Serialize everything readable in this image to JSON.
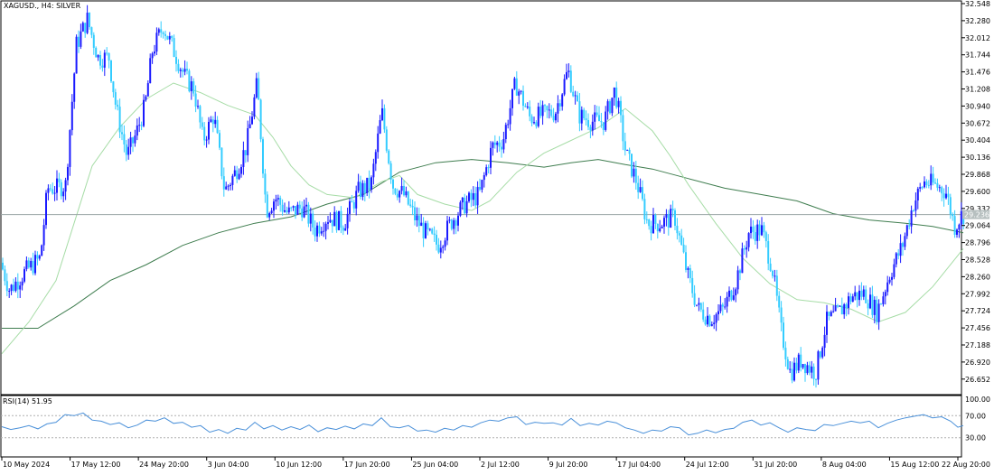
{
  "header": {
    "symbol_label": "XAGUSD., H4:  SILVER"
  },
  "rsi": {
    "label": "RSI(14) 51.95",
    "levels": [
      "100.00",
      "70.00",
      "30.00",
      "0.00"
    ],
    "current": 51.95
  },
  "colors": {
    "bull": "#1a1aff",
    "bear": "#33ccff",
    "ma_fast": "#a6dca6",
    "ma_slow": "#3f7d4f",
    "rsi_line": "#4a90d9",
    "current_line": "#9aa5a5",
    "price_tag_bg": "#b7c0c0"
  },
  "chart_data": {
    "type": "candlestick",
    "symbol": "XAGUSD.",
    "timeframe": "H4",
    "ylim": [
      26.38,
      32.55
    ],
    "price_ticks": [
      "32.548",
      "32.280",
      "32.012",
      "31.744",
      "31.476",
      "31.208",
      "30.940",
      "30.672",
      "30.404",
      "30.136",
      "29.868",
      "29.600",
      "29.332",
      "29.064",
      "28.796",
      "28.528",
      "28.260",
      "27.992",
      "27.724",
      "27.456",
      "27.188",
      "26.920",
      "26.652"
    ],
    "current_price": "29.236",
    "time_labels": [
      "10 May 2024",
      "17 May 12:00",
      "24 May 20:00",
      "3 Jun 04:00",
      "10 Jun 12:00",
      "17 Jun 20:00",
      "25 Jun 04:00",
      "2 Jul 12:00",
      "9 Jul 20:00",
      "17 Jul 04:00",
      "24 Jul 12:00",
      "31 Jul 20:00",
      "8 Aug 04:00",
      "15 Aug 12:00",
      "22 Aug 20:00"
    ],
    "close_path": [
      [
        0,
        28.48
      ],
      [
        10,
        28.05
      ],
      [
        28,
        28.35
      ],
      [
        44,
        28.55
      ],
      [
        52,
        29.65
      ],
      [
        62,
        29.65
      ],
      [
        72,
        29.7
      ],
      [
        84,
        31.9
      ],
      [
        96,
        32.3
      ],
      [
        108,
        31.7
      ],
      [
        120,
        31.7
      ],
      [
        128,
        30.9
      ],
      [
        140,
        30.15
      ],
      [
        150,
        30.5
      ],
      [
        160,
        30.95
      ],
      [
        168,
        31.8
      ],
      [
        180,
        32.2
      ],
      [
        192,
        31.8
      ],
      [
        204,
        31.4
      ],
      [
        214,
        31.2
      ],
      [
        224,
        30.4
      ],
      [
        236,
        30.8
      ],
      [
        248,
        29.6
      ],
      [
        260,
        29.9
      ],
      [
        272,
        30.3
      ],
      [
        284,
        31.3
      ],
      [
        294,
        29.3
      ],
      [
        304,
        29.5
      ],
      [
        318,
        29.25
      ],
      [
        334,
        29.35
      ],
      [
        348,
        29.0
      ],
      [
        362,
        29.2
      ],
      [
        380,
        29.1
      ],
      [
        396,
        29.6
      ],
      [
        410,
        29.7
      ],
      [
        422,
        30.85
      ],
      [
        434,
        29.7
      ],
      [
        446,
        29.55
      ],
      [
        458,
        29.2
      ],
      [
        470,
        28.95
      ],
      [
        484,
        28.75
      ],
      [
        500,
        29.15
      ],
      [
        514,
        29.4
      ],
      [
        530,
        29.55
      ],
      [
        544,
        30.3
      ],
      [
        556,
        30.4
      ],
      [
        570,
        31.3
      ],
      [
        586,
        30.75
      ],
      [
        600,
        30.8
      ],
      [
        614,
        30.85
      ],
      [
        628,
        31.5
      ],
      [
        640,
        30.8
      ],
      [
        654,
        30.7
      ],
      [
        668,
        30.7
      ],
      [
        680,
        31.2
      ],
      [
        692,
        30.2
      ],
      [
        704,
        29.75
      ],
      [
        716,
        29.1
      ],
      [
        730,
        29.1
      ],
      [
        746,
        29.2
      ],
      [
        760,
        28.3
      ],
      [
        772,
        27.75
      ],
      [
        786,
        27.6
      ],
      [
        800,
        27.75
      ],
      [
        814,
        28.2
      ],
      [
        828,
        28.95
      ],
      [
        842,
        29.0
      ],
      [
        854,
        28.4
      ],
      [
        864,
        27.4
      ],
      [
        874,
        26.75
      ],
      [
        886,
        26.95
      ],
      [
        902,
        26.75
      ],
      [
        914,
        27.55
      ],
      [
        928,
        27.7
      ],
      [
        942,
        27.95
      ],
      [
        956,
        28.0
      ],
      [
        970,
        27.7
      ],
      [
        984,
        28.3
      ],
      [
        998,
        28.75
      ],
      [
        1010,
        29.4
      ],
      [
        1022,
        29.75
      ],
      [
        1034,
        29.7
      ],
      [
        1046,
        29.6
      ],
      [
        1056,
        29.05
      ],
      [
        1064,
        29.24
      ]
    ],
    "ma_fast": [
      [
        0,
        27.05
      ],
      [
        30,
        27.55
      ],
      [
        60,
        28.2
      ],
      [
        80,
        29.1
      ],
      [
        100,
        30.0
      ],
      [
        130,
        30.6
      ],
      [
        160,
        31.05
      ],
      [
        190,
        31.3
      ],
      [
        220,
        31.15
      ],
      [
        250,
        30.95
      ],
      [
        280,
        30.8
      ],
      [
        300,
        30.45
      ],
      [
        320,
        30.0
      ],
      [
        340,
        29.7
      ],
      [
        360,
        29.55
      ],
      [
        390,
        29.5
      ],
      [
        420,
        29.75
      ],
      [
        440,
        29.85
      ],
      [
        460,
        29.55
      ],
      [
        490,
        29.4
      ],
      [
        520,
        29.3
      ],
      [
        540,
        29.45
      ],
      [
        570,
        29.9
      ],
      [
        600,
        30.2
      ],
      [
        630,
        30.4
      ],
      [
        660,
        30.6
      ],
      [
        690,
        30.9
      ],
      [
        720,
        30.55
      ],
      [
        740,
        30.15
      ],
      [
        760,
        29.7
      ],
      [
        790,
        29.1
      ],
      [
        820,
        28.55
      ],
      [
        850,
        28.15
      ],
      [
        880,
        27.9
      ],
      [
        910,
        27.85
      ],
      [
        940,
        27.75
      ],
      [
        970,
        27.55
      ],
      [
        1000,
        27.7
      ],
      [
        1030,
        28.1
      ],
      [
        1064,
        28.7
      ]
    ],
    "ma_slow": [
      [
        0,
        27.45
      ],
      [
        40,
        27.45
      ],
      [
        80,
        27.8
      ],
      [
        120,
        28.2
      ],
      [
        160,
        28.45
      ],
      [
        200,
        28.75
      ],
      [
        240,
        28.95
      ],
      [
        280,
        29.1
      ],
      [
        320,
        29.2
      ],
      [
        360,
        29.4
      ],
      [
        400,
        29.55
      ],
      [
        440,
        29.9
      ],
      [
        480,
        30.05
      ],
      [
        520,
        30.1
      ],
      [
        560,
        30.05
      ],
      [
        600,
        29.98
      ],
      [
        630,
        30.05
      ],
      [
        660,
        30.1
      ],
      [
        690,
        30.02
      ],
      [
        720,
        29.95
      ],
      [
        760,
        29.8
      ],
      [
        800,
        29.65
      ],
      [
        840,
        29.55
      ],
      [
        880,
        29.45
      ],
      [
        920,
        29.25
      ],
      [
        960,
        29.15
      ],
      [
        1000,
        29.1
      ],
      [
        1030,
        29.05
      ],
      [
        1064,
        28.95
      ]
    ],
    "rsi_series": [
      [
        0,
        50
      ],
      [
        10,
        45
      ],
      [
        20,
        48
      ],
      [
        30,
        52
      ],
      [
        40,
        46
      ],
      [
        50,
        55
      ],
      [
        60,
        58
      ],
      [
        70,
        72
      ],
      [
        80,
        70
      ],
      [
        90,
        75
      ],
      [
        100,
        62
      ],
      [
        110,
        60
      ],
      [
        120,
        54
      ],
      [
        130,
        57
      ],
      [
        140,
        48
      ],
      [
        150,
        53
      ],
      [
        160,
        62
      ],
      [
        170,
        60
      ],
      [
        180,
        66
      ],
      [
        190,
        56
      ],
      [
        200,
        58
      ],
      [
        210,
        49
      ],
      [
        220,
        52
      ],
      [
        230,
        40
      ],
      [
        240,
        45
      ],
      [
        250,
        38
      ],
      [
        260,
        47
      ],
      [
        270,
        44
      ],
      [
        280,
        58
      ],
      [
        290,
        46
      ],
      [
        300,
        52
      ],
      [
        310,
        44
      ],
      [
        320,
        50
      ],
      [
        330,
        45
      ],
      [
        340,
        53
      ],
      [
        350,
        41
      ],
      [
        360,
        48
      ],
      [
        370,
        45
      ],
      [
        380,
        51
      ],
      [
        390,
        46
      ],
      [
        400,
        55
      ],
      [
        410,
        52
      ],
      [
        420,
        66
      ],
      [
        430,
        50
      ],
      [
        440,
        48
      ],
      [
        450,
        52
      ],
      [
        460,
        42
      ],
      [
        470,
        44
      ],
      [
        480,
        40
      ],
      [
        490,
        47
      ],
      [
        500,
        44
      ],
      [
        510,
        52
      ],
      [
        520,
        49
      ],
      [
        530,
        57
      ],
      [
        540,
        62
      ],
      [
        550,
        60
      ],
      [
        560,
        66
      ],
      [
        570,
        68
      ],
      [
        580,
        54
      ],
      [
        590,
        58
      ],
      [
        600,
        56
      ],
      [
        610,
        57
      ],
      [
        620,
        53
      ],
      [
        630,
        65
      ],
      [
        640,
        52
      ],
      [
        650,
        56
      ],
      [
        660,
        53
      ],
      [
        670,
        60
      ],
      [
        680,
        57
      ],
      [
        690,
        48
      ],
      [
        700,
        44
      ],
      [
        710,
        38
      ],
      [
        720,
        44
      ],
      [
        730,
        42
      ],
      [
        740,
        50
      ],
      [
        750,
        48
      ],
      [
        760,
        35
      ],
      [
        770,
        38
      ],
      [
        780,
        44
      ],
      [
        790,
        39
      ],
      [
        800,
        45
      ],
      [
        810,
        47
      ],
      [
        820,
        58
      ],
      [
        830,
        62
      ],
      [
        840,
        53
      ],
      [
        850,
        57
      ],
      [
        860,
        48
      ],
      [
        870,
        40
      ],
      [
        880,
        48
      ],
      [
        890,
        45
      ],
      [
        900,
        43
      ],
      [
        910,
        54
      ],
      [
        920,
        52
      ],
      [
        930,
        56
      ],
      [
        940,
        60
      ],
      [
        950,
        57
      ],
      [
        960,
        60
      ],
      [
        970,
        48
      ],
      [
        980,
        56
      ],
      [
        990,
        62
      ],
      [
        1000,
        66
      ],
      [
        1010,
        69
      ],
      [
        1020,
        72
      ],
      [
        1030,
        66
      ],
      [
        1040,
        68
      ],
      [
        1050,
        60
      ],
      [
        1058,
        49
      ],
      [
        1064,
        52
      ]
    ]
  }
}
